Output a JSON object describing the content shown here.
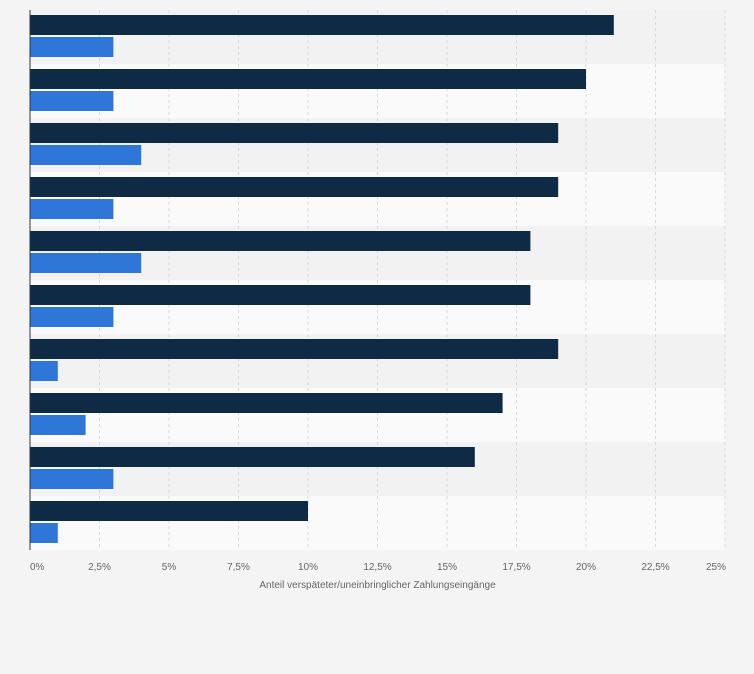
{
  "chart_data": {
    "type": "bar",
    "orientation": "horizontal",
    "categories": [
      "",
      "",
      "",
      "",
      "",
      "",
      "",
      "",
      "",
      ""
    ],
    "series": [
      {
        "name": "",
        "color": "#0f2a44",
        "values": [
          21,
          20,
          19,
          19,
          18,
          18,
          19,
          17,
          16,
          10
        ]
      },
      {
        "name": "",
        "color": "#2f76d9",
        "values": [
          3,
          3,
          4,
          3,
          4,
          3,
          1,
          2,
          3,
          1
        ]
      }
    ],
    "xlim": [
      0,
      25
    ],
    "xticks": [
      0,
      2.5,
      5,
      7.5,
      10,
      12.5,
      15,
      17.5,
      20,
      22.5,
      25
    ],
    "xtick_labels": [
      "0%",
      "2,5%",
      "5%",
      "7,5%",
      "10%",
      "12,5%",
      "15%",
      "17,5%",
      "20%",
      "22,5%",
      "25%"
    ],
    "xlabel": "Anteil verspäteter/uneinbringlicher Zahlungseingänge",
    "ylabel": "",
    "title": "",
    "grid": true,
    "legend": "none",
    "colors": {
      "background": "#f4f4f4",
      "band_light": "#fafafa",
      "band_dark": "#f2f2f2",
      "grid": "#d8d8d8",
      "axis": "#333333",
      "tick_text": "#666666"
    }
  }
}
